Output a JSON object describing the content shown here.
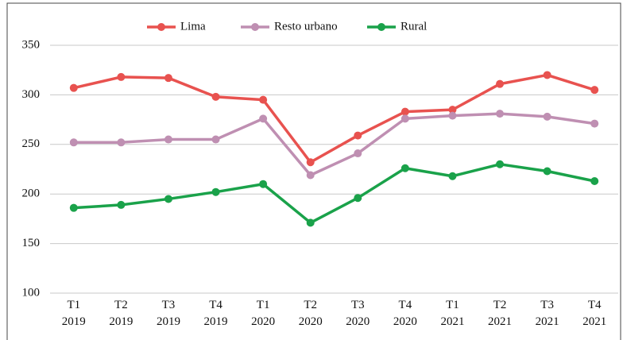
{
  "chart_data": {
    "type": "line",
    "categories": [
      "T1 2019",
      "T2 2019",
      "T3 2019",
      "T4 2019",
      "T1 2020",
      "T2 2020",
      "T3 2020",
      "T4 2020",
      "T1 2021",
      "T2 2021",
      "T3 2021",
      "T4 2021"
    ],
    "series": [
      {
        "name": "Lima",
        "color": "#e8524f",
        "values": [
          307,
          318,
          317,
          298,
          295,
          232,
          259,
          283,
          285,
          311,
          320,
          305
        ]
      },
      {
        "name": "Resto urbano",
        "color": "#bf8fb2",
        "values": [
          252,
          252,
          255,
          255,
          276,
          219,
          241,
          276,
          279,
          281,
          278,
          271
        ]
      },
      {
        "name": "Rural",
        "color": "#1aa24a",
        "values": [
          186,
          189,
          195,
          202,
          210,
          171,
          196,
          226,
          218,
          230,
          223,
          213
        ]
      }
    ],
    "ylim": [
      100,
      350
    ],
    "yticks": [
      100,
      150,
      200,
      250,
      300,
      350
    ],
    "grid": true,
    "legend": "top"
  }
}
